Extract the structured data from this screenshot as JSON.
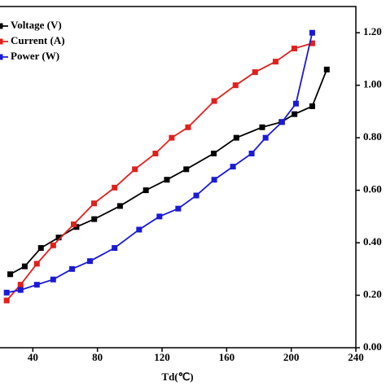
{
  "chart_data": {
    "type": "line",
    "x_label": "Td(℃)",
    "xlim": [
      0,
      240
    ],
    "xticks": [
      40,
      80,
      120,
      160,
      200,
      240
    ],
    "ylim": [
      0,
      1.3
    ],
    "yticks": [
      {
        "value": 0,
        "label": "0.00"
      },
      {
        "value": 0.2,
        "label": "0.20"
      },
      {
        "value": 0.4,
        "label": "0.40"
      },
      {
        "value": 0.6,
        "label": "0.60"
      },
      {
        "value": 0.8,
        "label": "0.80"
      },
      {
        "value": 1.0,
        "label": "1.00"
      },
      {
        "value": 1.2,
        "label": "1.20"
      }
    ],
    "series": [
      {
        "name": "Voltage (V)",
        "color": "#000000",
        "x": [
          26,
          35,
          45,
          56,
          67,
          78,
          94,
          110,
          123,
          135,
          152,
          166,
          182,
          194,
          202,
          213,
          222
        ],
        "values": [
          0.28,
          0.31,
          0.38,
          0.42,
          0.46,
          0.49,
          0.54,
          0.6,
          0.64,
          0.68,
          0.74,
          0.8,
          0.84,
          0.86,
          0.89,
          0.92,
          1.06
        ]
      },
      {
        "name": "Current (A)",
        "color": "#e0201c",
        "x": [
          23.8,
          32.4,
          42.5,
          52.6,
          65.3,
          77.9,
          90.6,
          103.2,
          115.9,
          126,
          136.1,
          152.3,
          165.5,
          177.6,
          190.3,
          201.9,
          213
        ],
        "values": [
          0.18,
          0.24,
          0.32,
          0.39,
          0.47,
          0.55,
          0.61,
          0.68,
          0.74,
          0.8,
          0.84,
          0.94,
          1.0,
          1.05,
          1.09,
          1.14,
          1.16
        ]
      },
      {
        "name": "Power (W)",
        "color": "#1a1ad6",
        "x": [
          23.8,
          32.4,
          42.5,
          52.6,
          64.3,
          75.4,
          90.6,
          105.8,
          118.4,
          130,
          141.2,
          152.3,
          163.9,
          175.5,
          184.1,
          194.3,
          202.9,
          213
        ],
        "values": [
          0.21,
          0.22,
          0.24,
          0.26,
          0.3,
          0.33,
          0.38,
          0.45,
          0.5,
          0.53,
          0.58,
          0.64,
          0.69,
          0.74,
          0.8,
          0.86,
          0.93,
          1.2
        ]
      }
    ]
  }
}
